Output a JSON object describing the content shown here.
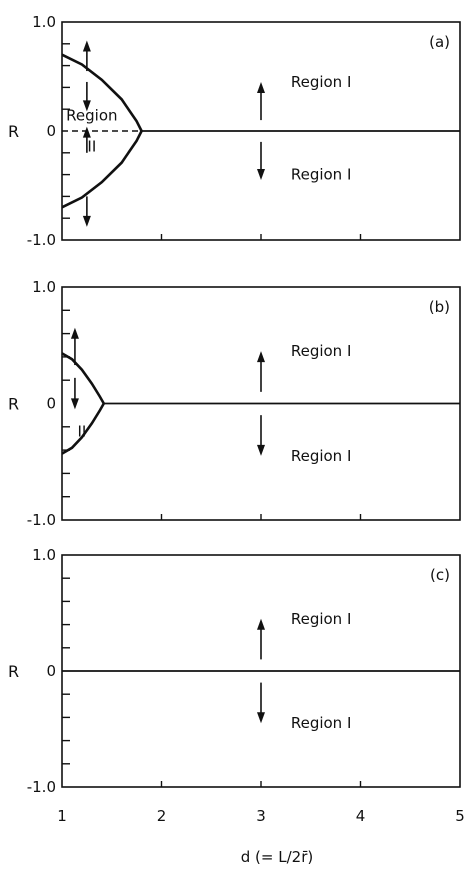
{
  "chart_data": [
    {
      "type": "line",
      "panel_label": "(a)",
      "ylabel": "R",
      "xlim": [
        1,
        5
      ],
      "ylim": [
        -1.0,
        1.0
      ],
      "yticks": [
        {
          "value": 1.0,
          "label": "1.0"
        },
        {
          "value": 0,
          "label": "0"
        },
        {
          "value": -1.0,
          "label": "-1.0"
        }
      ],
      "series": [
        {
          "x": [
            1.0,
            1.2,
            1.4,
            1.6,
            1.75,
            1.8
          ],
          "y": [
            0.7,
            0.61,
            0.47,
            0.29,
            0.09,
            0.0
          ]
        },
        {
          "x": [
            1.0,
            1.2,
            1.4,
            1.6,
            1.75,
            1.8
          ],
          "y": [
            -0.7,
            -0.61,
            -0.47,
            -0.29,
            -0.09,
            0.0
          ]
        },
        {
          "x": [
            1.8,
            5.0
          ],
          "y": [
            0,
            0
          ]
        }
      ],
      "dashed": {
        "x": [
          1.0,
          1.8
        ],
        "y": [
          0,
          0
        ]
      },
      "annotations": [
        {
          "text": "Region I",
          "x": 3.3,
          "y": 0.45
        },
        {
          "text": "Region I",
          "x": 3.3,
          "y": -0.4
        },
        {
          "text": "Region",
          "x": 1.3,
          "y": 0.14
        },
        {
          "text": "II",
          "x": 1.3,
          "y": -0.14
        }
      ],
      "arrows": [
        {
          "x": 1.25,
          "y1": 0.55,
          "y2": 0.83
        },
        {
          "x": 1.25,
          "y1": 0.45,
          "y2": 0.18
        },
        {
          "x": 1.25,
          "y1": -0.2,
          "y2": 0.04
        },
        {
          "x": 1.25,
          "y1": -0.6,
          "y2": -0.88
        },
        {
          "x": 3.0,
          "y1": 0.1,
          "y2": 0.45
        },
        {
          "x": 3.0,
          "y1": -0.1,
          "y2": -0.45
        }
      ]
    },
    {
      "type": "line",
      "panel_label": "(b)",
      "ylabel": "R",
      "xlim": [
        1,
        5
      ],
      "ylim": [
        -1.0,
        1.0
      ],
      "yticks": [
        {
          "value": 1.0,
          "label": "1.0"
        },
        {
          "value": 0,
          "label": "0"
        },
        {
          "value": -1.0,
          "label": "-1.0"
        }
      ],
      "series": [
        {
          "x": [
            1.0,
            1.1,
            1.2,
            1.3,
            1.38,
            1.42
          ],
          "y": [
            0.43,
            0.38,
            0.29,
            0.17,
            0.06,
            0.0
          ]
        },
        {
          "x": [
            1.0,
            1.1,
            1.2,
            1.3,
            1.38,
            1.42
          ],
          "y": [
            -0.43,
            -0.38,
            -0.29,
            -0.17,
            -0.06,
            0.0
          ]
        },
        {
          "x": [
            1.42,
            5.0
          ],
          "y": [
            0,
            0
          ]
        }
      ],
      "annotations": [
        {
          "text": "Region I",
          "x": 3.3,
          "y": 0.45
        },
        {
          "text": "Region I",
          "x": 3.3,
          "y": -0.45
        },
        {
          "text": "II",
          "x": 1.2,
          "y": -0.24
        }
      ],
      "arrows": [
        {
          "x": 1.13,
          "y1": 0.33,
          "y2": 0.65
        },
        {
          "x": 1.13,
          "y1": 0.22,
          "y2": -0.05
        },
        {
          "x": 3.0,
          "y1": 0.1,
          "y2": 0.45
        },
        {
          "x": 3.0,
          "y1": -0.1,
          "y2": -0.45
        }
      ]
    },
    {
      "type": "line",
      "panel_label": "(c)",
      "ylabel": "R",
      "xlabel": "d (= L/2r̄)",
      "xlim": [
        1,
        5
      ],
      "ylim": [
        -1.0,
        1.0
      ],
      "xticks": [
        {
          "value": 1,
          "label": "1"
        },
        {
          "value": 2,
          "label": "2"
        },
        {
          "value": 3,
          "label": "3"
        },
        {
          "value": 4,
          "label": "4"
        },
        {
          "value": 5,
          "label": "5"
        }
      ],
      "yticks": [
        {
          "value": 1.0,
          "label": "1.0"
        },
        {
          "value": 0,
          "label": "0"
        },
        {
          "value": -1.0,
          "label": "-1.0"
        }
      ],
      "series": [
        {
          "x": [
            1.0,
            5.0
          ],
          "y": [
            0,
            0
          ]
        }
      ],
      "annotations": [
        {
          "text": "Region I",
          "x": 3.3,
          "y": 0.45
        },
        {
          "text": "Region I",
          "x": 3.3,
          "y": -0.45
        }
      ],
      "arrows": [
        {
          "x": 3.0,
          "y1": 0.1,
          "y2": 0.45
        },
        {
          "x": 3.0,
          "y1": -0.1,
          "y2": -0.45
        }
      ]
    }
  ]
}
